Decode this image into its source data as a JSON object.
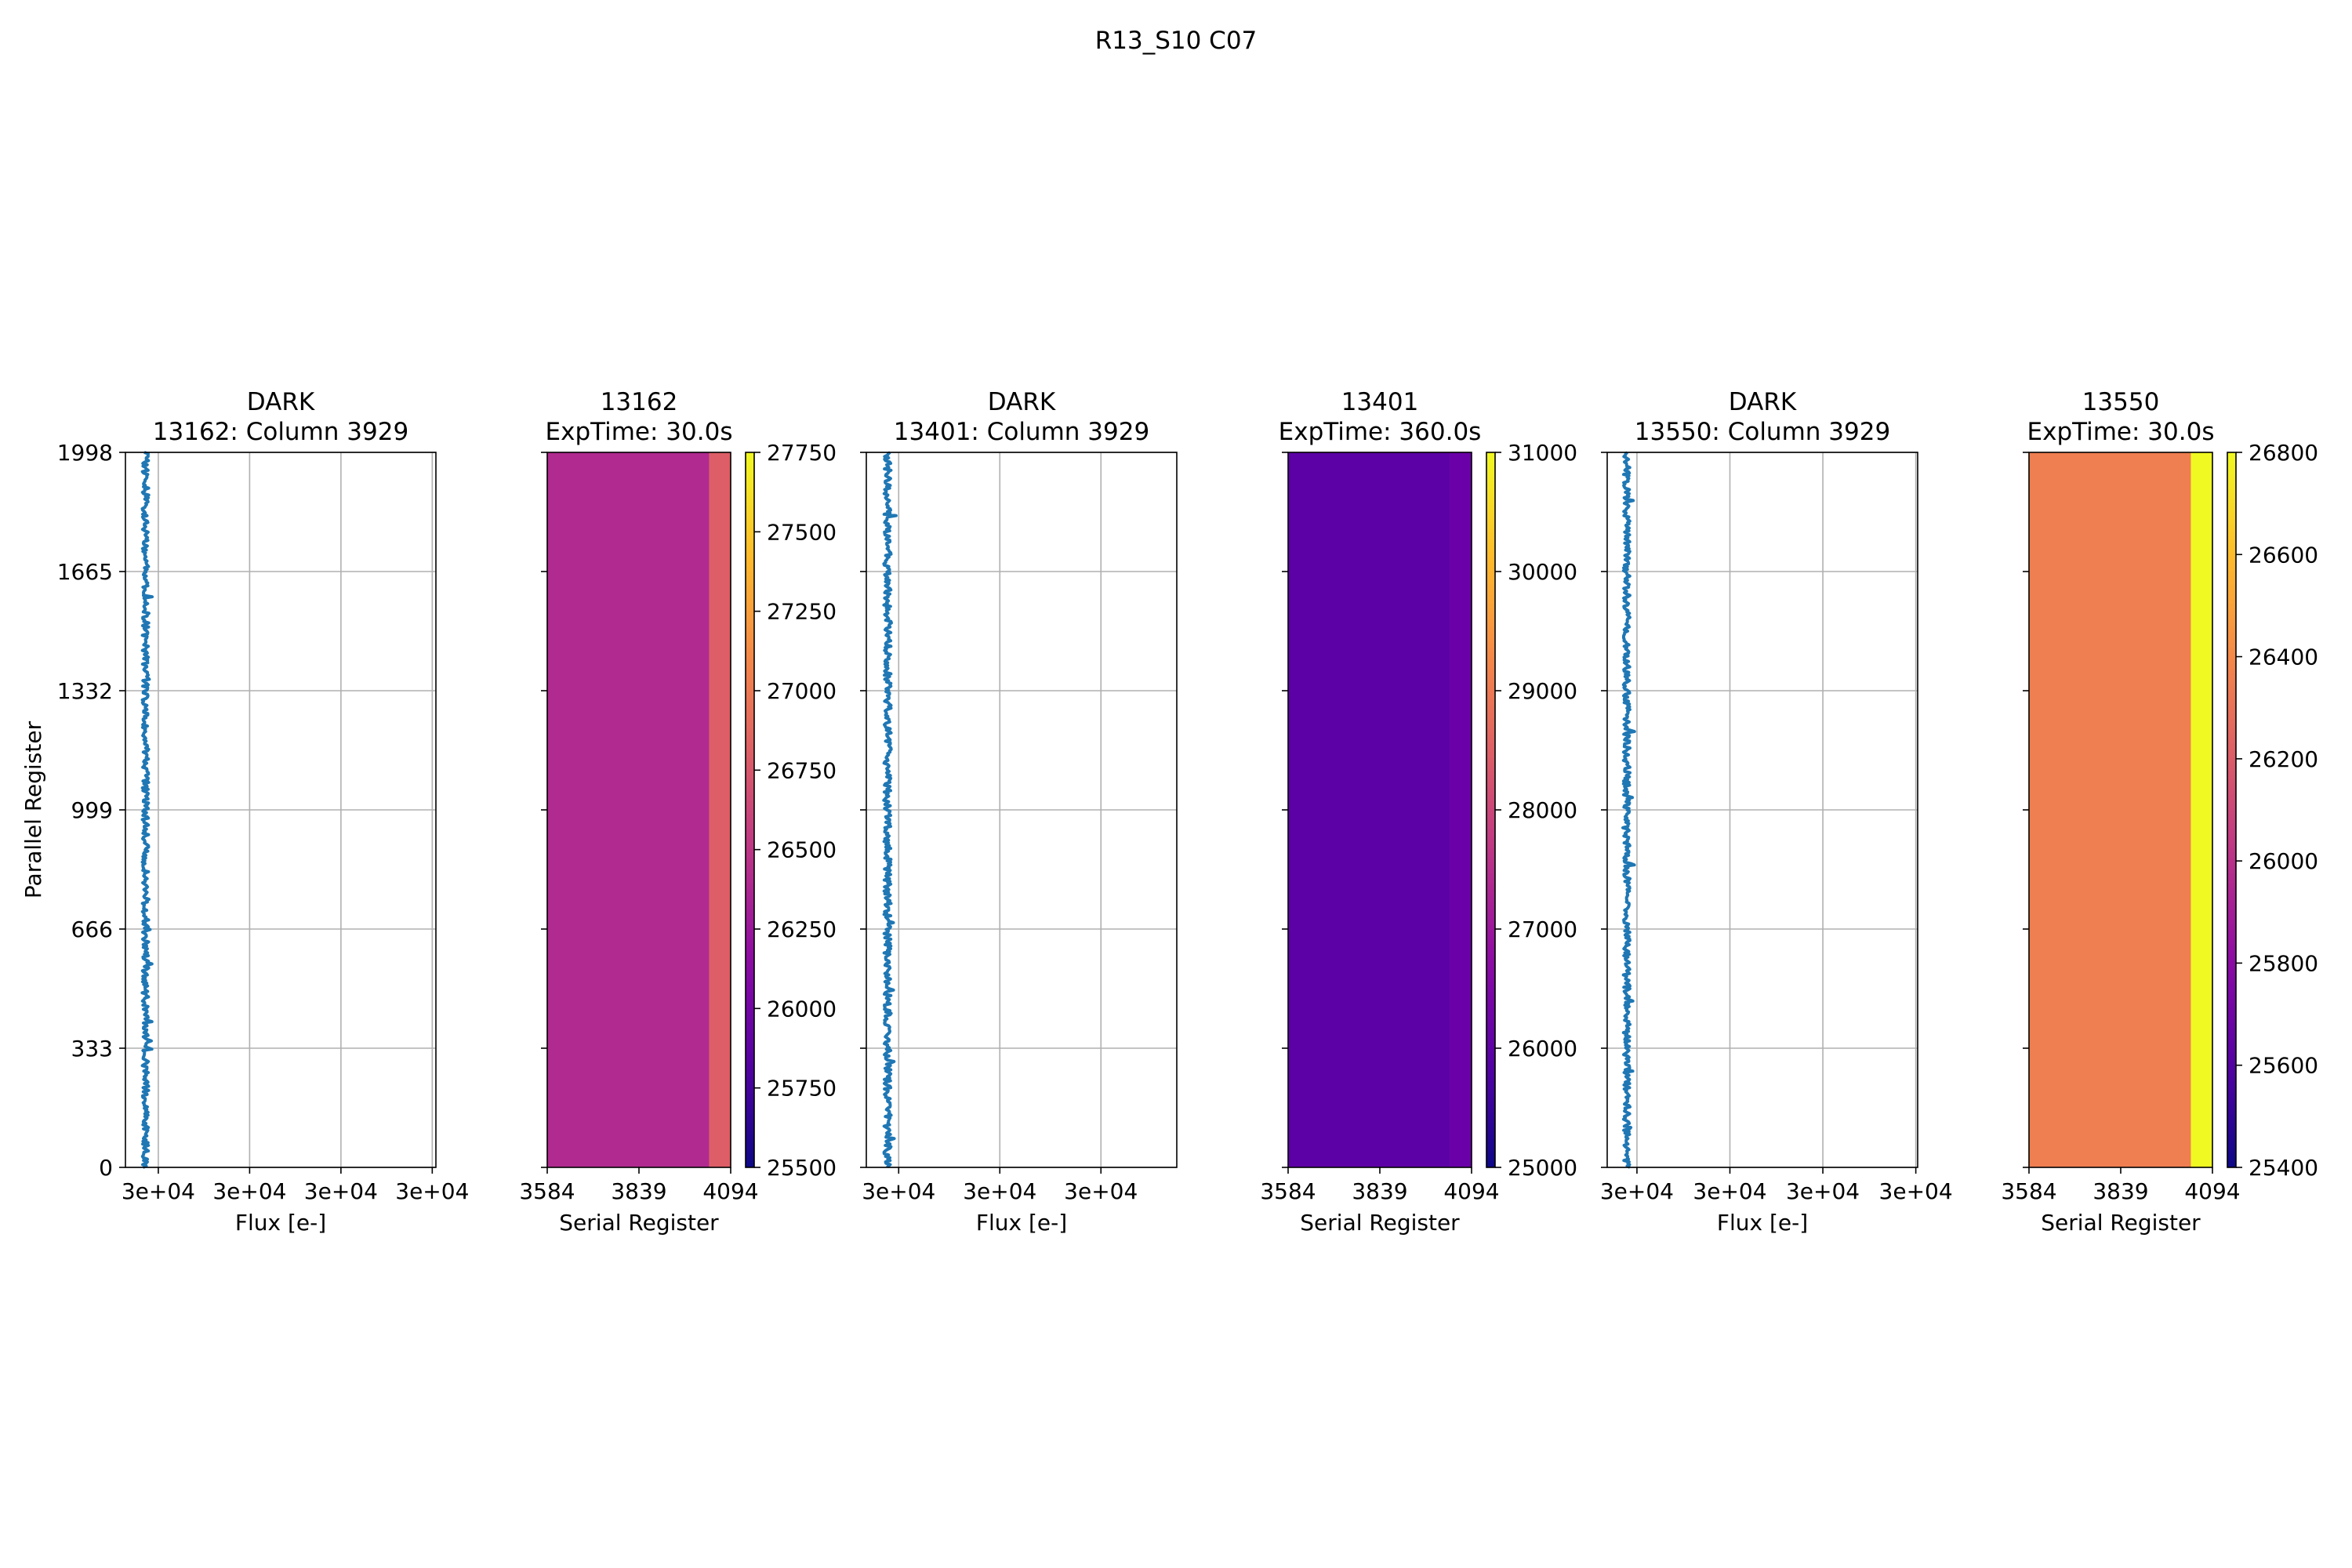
{
  "figure": {
    "suptitle": "R13_S10 C07"
  },
  "chart_data": [
    {
      "type": "line",
      "title": [
        "DARK",
        "13162: Column 3929"
      ],
      "xlabel": "Flux [e-]",
      "ylabel": "Parallel Register",
      "xticks": [
        {
          "value": 1,
          "label": "3e+04"
        },
        {
          "value": 2,
          "label": "3e+04"
        },
        {
          "value": 3,
          "label": "3e+04"
        },
        {
          "value": 4,
          "label": "3e+04"
        }
      ],
      "xlim": [
        0.64,
        4.04
      ],
      "yticks": [
        0,
        333,
        666,
        999,
        1332,
        1665,
        1998
      ],
      "ylim": [
        0,
        1998
      ],
      "grid": true,
      "series": [
        {
          "x_center": 0.86,
          "x_jitter": 0.035,
          "color": "#1f77b4"
        }
      ]
    },
    {
      "type": "heatmap",
      "title": [
        "13162",
        "ExpTime: 30.0s"
      ],
      "xlabel": "Serial Register",
      "xticks": [
        3584,
        3839,
        4094
      ],
      "xlim": [
        3584,
        4094
      ],
      "ylim": [
        0,
        1998
      ],
      "regions": [
        {
          "x0": 3584,
          "x1": 4034,
          "value": 26300,
          "color": "#b02a8f"
        },
        {
          "x0": 4034,
          "x1": 4094,
          "value": 26950,
          "color": "#dd5e66"
        }
      ],
      "colorbar": {
        "ticks": [
          25500,
          25750,
          26000,
          26250,
          26500,
          26750,
          27000,
          27250,
          27500,
          27750
        ],
        "range": [
          25500,
          27750
        ],
        "cmap": "plasma"
      }
    },
    {
      "type": "line",
      "title": [
        "DARK",
        "13401: Column 3929"
      ],
      "xlabel": "Flux [e-]",
      "xticks": [
        {
          "value": 1,
          "label": "3e+04"
        },
        {
          "value": 2,
          "label": "3e+04"
        },
        {
          "value": 3,
          "label": "3e+04"
        }
      ],
      "xlim": [
        0.68,
        3.75
      ],
      "ylim": [
        0,
        1998
      ],
      "grid": true,
      "series": [
        {
          "x_center": 0.89,
          "x_jitter": 0.035,
          "color": "#1f77b4"
        }
      ]
    },
    {
      "type": "heatmap",
      "title": [
        "13401",
        "ExpTime: 360.0s"
      ],
      "xlabel": "Serial Register",
      "xticks": [
        3584,
        3839,
        4094
      ],
      "xlim": [
        3584,
        4094
      ],
      "ylim": [
        0,
        1998
      ],
      "regions": [
        {
          "x0": 3584,
          "x1": 4034,
          "value": 26350,
          "color": "#5c01a6"
        },
        {
          "x0": 4034,
          "x1": 4094,
          "value": 26700,
          "color": "#6a00a8"
        }
      ],
      "colorbar": {
        "ticks": [
          25000,
          26000,
          27000,
          28000,
          29000,
          30000,
          31000
        ],
        "range": [
          25000,
          31000
        ],
        "cmap": "plasma"
      }
    },
    {
      "type": "line",
      "title": [
        "DARK",
        "13550: Column 3929"
      ],
      "xlabel": "Flux [e-]",
      "xticks": [
        {
          "value": 1,
          "label": "3e+04"
        },
        {
          "value": 2,
          "label": "3e+04"
        },
        {
          "value": 3,
          "label": "3e+04"
        },
        {
          "value": 4,
          "label": "3e+04"
        }
      ],
      "xlim": [
        0.68,
        4.02
      ],
      "ylim": [
        0,
        1998
      ],
      "grid": true,
      "series": [
        {
          "x_center": 0.89,
          "x_jitter": 0.035,
          "color": "#1f77b4"
        }
      ]
    },
    {
      "type": "heatmap",
      "title": [
        "13550",
        "ExpTime: 30.0s"
      ],
      "xlabel": "Serial Register",
      "xticks": [
        3584,
        3839,
        4094
      ],
      "xlim": [
        3584,
        4094
      ],
      "ylim": [
        0,
        1998
      ],
      "regions": [
        {
          "x0": 3584,
          "x1": 4034,
          "value": 26300,
          "color": "#ef7e50"
        },
        {
          "x0": 4034,
          "x1": 4094,
          "value": 26800,
          "color": "#f0f921"
        }
      ],
      "colorbar": {
        "ticks": [
          25400,
          25600,
          25800,
          26000,
          26200,
          26400,
          26600,
          26800
        ],
        "range": [
          25400,
          26800
        ],
        "cmap": "plasma"
      }
    }
  ]
}
